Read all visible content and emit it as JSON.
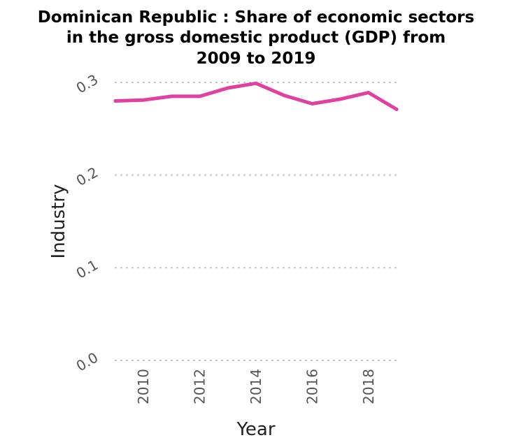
{
  "chart_data": {
    "type": "line",
    "title_lines": [
      "Dominican Republic : Share of economic sectors",
      "in the gross domestic product (GDP) from",
      "2009 to 2019"
    ],
    "xlabel": "Year",
    "ylabel": "Industry",
    "x": [
      2009,
      2010,
      2011,
      2012,
      2013,
      2014,
      2015,
      2016,
      2017,
      2018,
      2019
    ],
    "series": [
      {
        "values": [
          0.28,
          0.281,
          0.285,
          0.285,
          0.294,
          0.299,
          0.286,
          0.277,
          0.282,
          0.289,
          0.271
        ]
      }
    ],
    "xlim": [
      2009,
      2019
    ],
    "ylim": [
      0,
      0.3
    ],
    "x_ticks": [
      2010,
      2012,
      2014,
      2016,
      2018
    ],
    "x_tick_labels": [
      "2010",
      "2012",
      "2014",
      "2016",
      "2018"
    ],
    "y_ticks": [
      0.0,
      0.1,
      0.2,
      0.3
    ],
    "y_tick_labels": [
      "0.0",
      "0.1",
      "0.2",
      "0.3"
    ],
    "grid": "horizontal dotted",
    "line_color": "#e040a0"
  }
}
